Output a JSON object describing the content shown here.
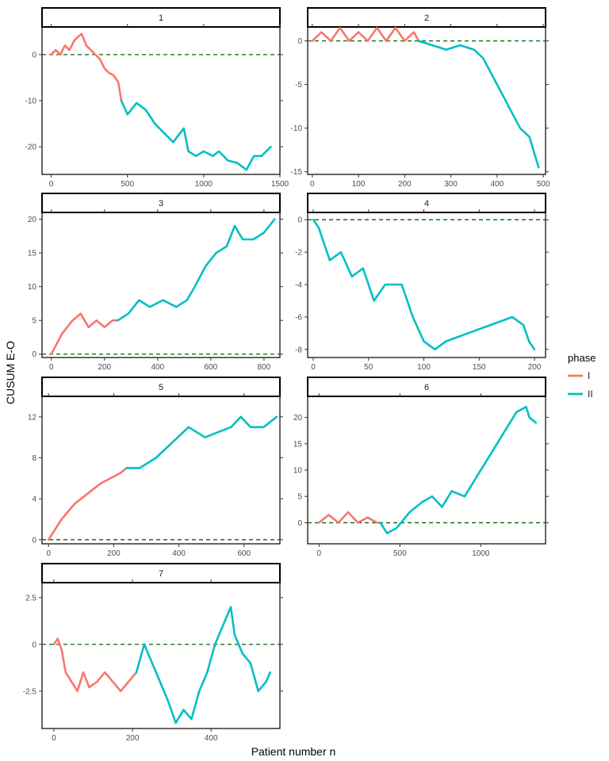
{
  "figure": {
    "xlabel": "Patient number n",
    "ylabel": "CUSUM E-O",
    "legend": {
      "title": "phase",
      "position": "right",
      "entries": [
        {
          "label": "I",
          "color": "#F8766D"
        },
        {
          "label": "II",
          "color": "#00BFC4"
        }
      ]
    }
  },
  "chart_data": [
    {
      "type": "line",
      "panel": "1",
      "xlim": [
        -60,
        1500
      ],
      "ylim": [
        -26,
        6
      ],
      "xticks": [
        0,
        500,
        1000,
        1500
      ],
      "yticks": [
        -20,
        -10,
        0
      ],
      "reference_line": 0,
      "series": [
        {
          "name": "I",
          "x": [
            0,
            30,
            60,
            90,
            120,
            150,
            180,
            200,
            230,
            260,
            290,
            320,
            350,
            380,
            410,
            440,
            460
          ],
          "y": [
            0,
            1,
            0,
            2,
            1,
            3,
            4,
            4.5,
            2,
            1,
            0,
            -1,
            -3,
            -4,
            -4.5,
            -6,
            -10
          ]
        },
        {
          "name": "II",
          "x": [
            460,
            500,
            560,
            620,
            680,
            740,
            800,
            870,
            900,
            950,
            1000,
            1060,
            1100,
            1160,
            1220,
            1280,
            1330,
            1380,
            1440
          ],
          "y": [
            -10,
            -13,
            -10.5,
            -12,
            -15,
            -17,
            -19,
            -16,
            -21,
            -22,
            -21,
            -22,
            -21,
            -23,
            -23.5,
            -25,
            -22,
            -22,
            -20
          ]
        }
      ]
    },
    {
      "type": "line",
      "panel": "2",
      "xlim": [
        -10,
        505
      ],
      "ylim": [
        -15.3,
        1.6
      ],
      "xticks": [
        0,
        100,
        200,
        300,
        400,
        500
      ],
      "yticks": [
        -15,
        -10,
        -5,
        0
      ],
      "reference_line": 0,
      "series": [
        {
          "name": "I",
          "x": [
            0,
            20,
            40,
            60,
            80,
            100,
            120,
            140,
            160,
            180,
            200,
            220,
            230
          ],
          "y": [
            0,
            1,
            0,
            1.5,
            0,
            1,
            0,
            1.5,
            0,
            1.5,
            0,
            1,
            0
          ]
        },
        {
          "name": "II",
          "x": [
            230,
            260,
            290,
            320,
            350,
            370,
            390,
            410,
            430,
            450,
            470,
            490
          ],
          "y": [
            0,
            -0.5,
            -1,
            -0.5,
            -1,
            -2,
            -4,
            -6,
            -8,
            -10,
            -11,
            -14.5
          ]
        }
      ]
    },
    {
      "type": "line",
      "panel": "3",
      "xlim": [
        -35,
        860
      ],
      "ylim": [
        -0.5,
        21
      ],
      "xticks": [
        0,
        200,
        400,
        600,
        800
      ],
      "yticks": [
        0,
        5,
        10,
        15,
        20
      ],
      "reference_line": 0,
      "series": [
        {
          "name": "I",
          "x": [
            0,
            40,
            80,
            110,
            140,
            170,
            200,
            230,
            250
          ],
          "y": [
            0,
            3,
            5,
            6,
            4,
            5,
            4,
            5,
            5
          ]
        },
        {
          "name": "II",
          "x": [
            250,
            290,
            330,
            370,
            420,
            470,
            510,
            540,
            580,
            620,
            660,
            690,
            720,
            760,
            800,
            840
          ],
          "y": [
            5,
            6,
            8,
            7,
            8,
            7,
            8,
            10,
            13,
            15,
            16,
            19,
            17,
            17,
            18,
            20
          ]
        }
      ]
    },
    {
      "type": "line",
      "panel": "4",
      "xlim": [
        -5,
        210
      ],
      "ylim": [
        -8.5,
        0.45
      ],
      "xticks": [
        0,
        50,
        100,
        150,
        200
      ],
      "yticks": [
        -8,
        -6,
        -4,
        -2,
        0
      ],
      "reference_line": 0,
      "series": [
        {
          "name": "II",
          "x": [
            0,
            5,
            10,
            15,
            25,
            35,
            45,
            55,
            65,
            80,
            90,
            100,
            110,
            120,
            140,
            160,
            180,
            190,
            195,
            200
          ],
          "y": [
            0,
            -0.5,
            -1.5,
            -2.5,
            -2,
            -3.5,
            -3,
            -5,
            -4,
            -4,
            -6,
            -7.5,
            -8,
            -7.5,
            -7,
            -6.5,
            -6,
            -6.5,
            -7.5,
            -8
          ]
        }
      ]
    },
    {
      "type": "line",
      "panel": "5",
      "xlim": [
        -20,
        710
      ],
      "ylim": [
        -0.4,
        14
      ],
      "xticks": [
        0,
        200,
        400,
        600
      ],
      "yticks": [
        0,
        4,
        8,
        12
      ],
      "reference_line": 0,
      "series": [
        {
          "name": "I",
          "x": [
            0,
            40,
            80,
            120,
            160,
            190,
            220,
            240
          ],
          "y": [
            0,
            2,
            3.5,
            4.5,
            5.5,
            6,
            6.5,
            7
          ]
        },
        {
          "name": "II",
          "x": [
            240,
            280,
            330,
            380,
            430,
            480,
            520,
            560,
            590,
            620,
            660,
            700
          ],
          "y": [
            7,
            7,
            8,
            9.5,
            11,
            10,
            10.5,
            11,
            12,
            11,
            11,
            12
          ]
        }
      ]
    },
    {
      "type": "line",
      "panel": "6",
      "xlim": [
        -70,
        1400
      ],
      "ylim": [
        -4,
        24
      ],
      "xticks": [
        0,
        500,
        1000
      ],
      "yticks": [
        0,
        5,
        10,
        15,
        20
      ],
      "reference_line": 0,
      "series": [
        {
          "name": "I",
          "x": [
            0,
            60,
            120,
            180,
            240,
            300,
            360,
            380
          ],
          "y": [
            0,
            1.5,
            0,
            2,
            0,
            1,
            0,
            0
          ]
        },
        {
          "name": "II",
          "x": [
            380,
            420,
            480,
            560,
            640,
            700,
            760,
            820,
            900,
            980,
            1060,
            1140,
            1220,
            1280,
            1300,
            1340
          ],
          "y": [
            0,
            -2,
            -1,
            2,
            4,
            5,
            3,
            6,
            5,
            9,
            13,
            17,
            21,
            22,
            20,
            19
          ]
        }
      ]
    },
    {
      "type": "line",
      "panel": "7",
      "xlim": [
        -30,
        575
      ],
      "ylim": [
        -4.5,
        3.3
      ],
      "xticks": [
        0,
        200,
        400
      ],
      "yticks": [
        -2.5,
        0,
        2.5
      ],
      "reference_line": 0,
      "series": [
        {
          "name": "I",
          "x": [
            0,
            10,
            20,
            30,
            45,
            60,
            75,
            90,
            110,
            130,
            150,
            170,
            190,
            210
          ],
          "y": [
            0,
            0.3,
            -0.3,
            -1.5,
            -2,
            -2.5,
            -1.5,
            -2.3,
            -2,
            -1.5,
            -2,
            -2.5,
            -2,
            -1.5
          ]
        },
        {
          "name": "II",
          "x": [
            210,
            230,
            250,
            270,
            290,
            310,
            330,
            350,
            370,
            390,
            410,
            430,
            450,
            460,
            480,
            500,
            520,
            540,
            550
          ],
          "y": [
            -1.5,
            0,
            -1,
            -2,
            -3,
            -4.2,
            -3.5,
            -4,
            -2.5,
            -1.5,
            0,
            1,
            2,
            0.5,
            -0.5,
            -1,
            -2.5,
            -2,
            -1.5
          ]
        }
      ]
    }
  ]
}
